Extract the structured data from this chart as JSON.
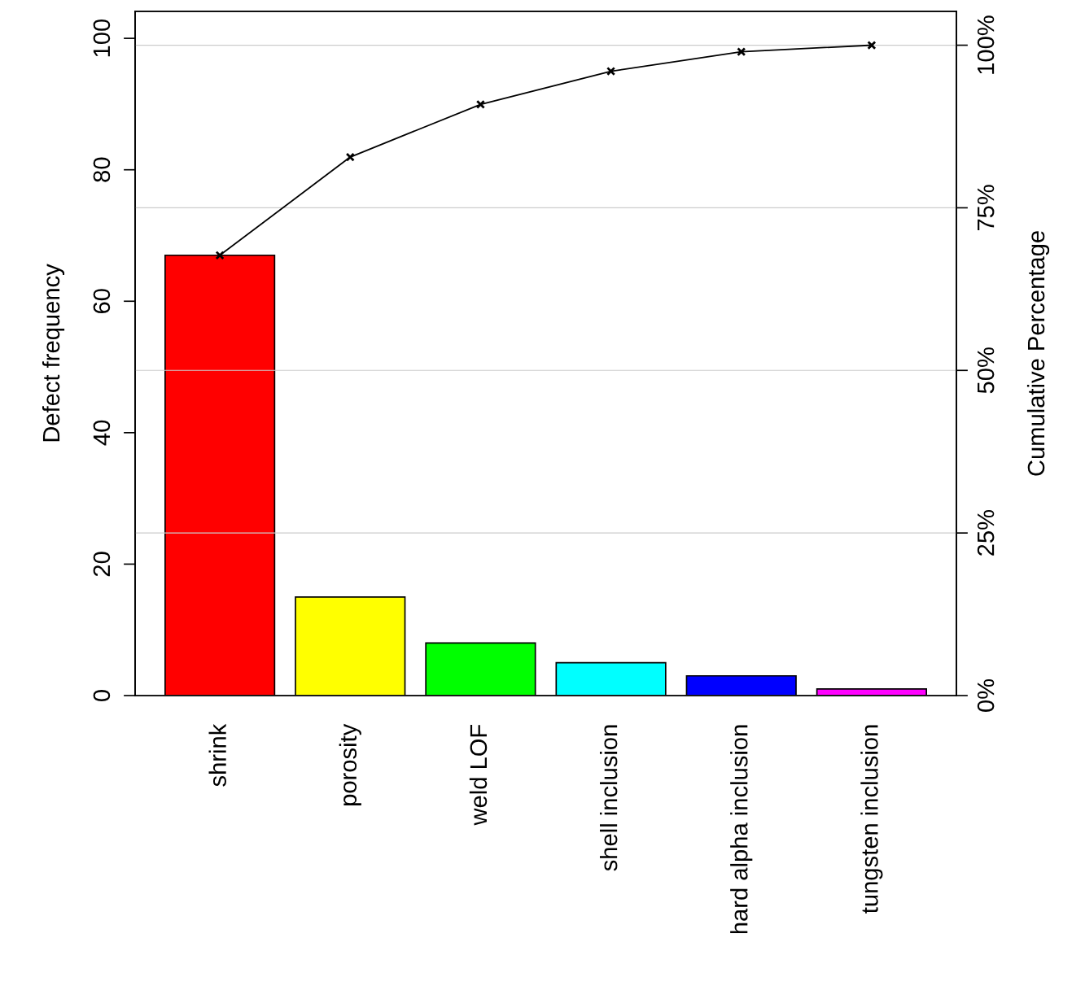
{
  "chart_data": {
    "type": "bar",
    "xlabel": null,
    "ylabel": "Defect frequency",
    "y2label": "Cumulative Percentage",
    "categories": [
      "shrink",
      "porosity",
      "weld LOF",
      "shell inclusion",
      "hard alpha inclusion",
      "tungsten inclusion"
    ],
    "series": [
      {
        "colors": [
          "#ff0000",
          "#ffff00",
          "#00ff00",
          "#00ffff",
          "#0000ff",
          "#ff00ff"
        ],
        "values": [
          67,
          15,
          8,
          5,
          3,
          1
        ]
      },
      {
        "type": "line",
        "axis": "y2",
        "color": "#000000",
        "values": [
          67.7,
          82.8,
          90.9,
          96.0,
          99.0,
          100
        ]
      }
    ],
    "ylim": [
      0,
      104.1
    ],
    "yticks": [
      0,
      20,
      40,
      60,
      80,
      100
    ],
    "y2lim": [
      0,
      105.2
    ],
    "y2ticks": [
      {
        "value": 0,
        "label": "0%"
      },
      {
        "value": 25,
        "label": "25%"
      },
      {
        "value": 50,
        "label": "50%"
      },
      {
        "value": 75,
        "label": "75%"
      },
      {
        "value": 100,
        "label": "100%"
      }
    ],
    "grid": "y2",
    "marker": "cross",
    "line_style": "solid",
    "legend": false
  }
}
